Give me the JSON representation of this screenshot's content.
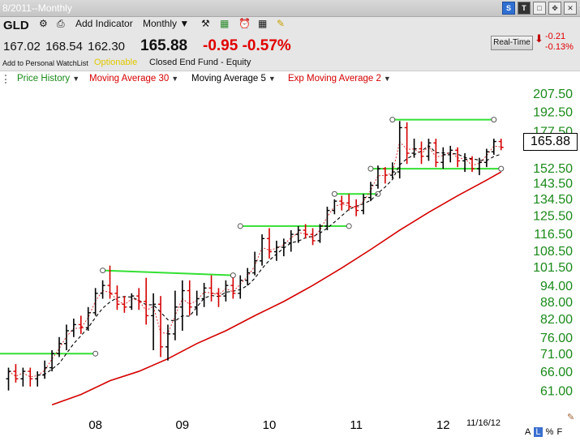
{
  "window": {
    "symbol_title": "8/2011--Monthly"
  },
  "header": {
    "ticker": "GLD",
    "add_indicator": "Add Indicator",
    "period": "Monthly",
    "open": "167.02",
    "high": "168.54",
    "low": "162.30",
    "last": "165.88",
    "change": "-0.95",
    "change_pct": "-0.57%",
    "watchlist": "Add to Personal WatchList",
    "optionable": "Optionable",
    "fund_type": "Closed End Fund - Equity",
    "realtime_label": "Real-Time",
    "rt_change": "-0.21",
    "rt_change_pct": "-0.13%"
  },
  "legend": {
    "price_history": "Price History",
    "ma30": "Moving Average 30",
    "ma5": "Moving Average 5",
    "ema2": "Exp Moving Average 2"
  },
  "footer": {
    "date": "11/16/12",
    "btn_a": "A",
    "btn_l": "L",
    "btn_pct": "%",
    "btn_f": "F"
  },
  "colors": {
    "up": "#000000",
    "down": "#d40000",
    "ma30": "#d40000",
    "ma5": "#000000",
    "ema2": "#d40000",
    "trendline": "#33e033",
    "axis_text": "#1a8a1a"
  },
  "chart_data": {
    "type": "line",
    "title": "",
    "xlabel": "",
    "ylabel": "",
    "ylim": [
      57,
      213
    ],
    "yscale": "log",
    "y_ticks": [
      "207.50",
      "192.50",
      "177.50",
      "165.88",
      "152.50",
      "143.50",
      "134.50",
      "125.50",
      "116.50",
      "108.50",
      "101.50",
      "94.00",
      "88.00",
      "82.00",
      "76.00",
      "71.00",
      "66.00",
      "61.00"
    ],
    "x_labels": [
      {
        "label": "08",
        "t": 12
      },
      {
        "label": "09",
        "t": 24
      },
      {
        "label": "10",
        "t": 36
      },
      {
        "label": "11",
        "t": 48
      },
      {
        "label": "12",
        "t": 60
      }
    ],
    "bars": [
      {
        "o": 64,
        "h": 67,
        "l": 61,
        "c": 66
      },
      {
        "o": 66,
        "h": 68,
        "l": 63,
        "c": 64
      },
      {
        "o": 64,
        "h": 67,
        "l": 62,
        "c": 66
      },
      {
        "o": 66,
        "h": 67,
        "l": 62,
        "c": 64
      },
      {
        "o": 64,
        "h": 66,
        "l": 62,
        "c": 65
      },
      {
        "o": 65,
        "h": 69,
        "l": 64,
        "c": 67
      },
      {
        "o": 67,
        "h": 72,
        "l": 66,
        "c": 71
      },
      {
        "o": 71,
        "h": 76,
        "l": 70,
        "c": 74
      },
      {
        "o": 74,
        "h": 80,
        "l": 72,
        "c": 78
      },
      {
        "o": 78,
        "h": 82,
        "l": 76,
        "c": 80
      },
      {
        "o": 80,
        "h": 83,
        "l": 77,
        "c": 79
      },
      {
        "o": 79,
        "h": 86,
        "l": 78,
        "c": 84
      },
      {
        "o": 84,
        "h": 93,
        "l": 83,
        "c": 91
      },
      {
        "o": 91,
        "h": 96,
        "l": 89,
        "c": 94
      },
      {
        "o": 94,
        "h": 102,
        "l": 89,
        "c": 91
      },
      {
        "o": 91,
        "h": 94,
        "l": 85,
        "c": 87
      },
      {
        "o": 87,
        "h": 90,
        "l": 84,
        "c": 86
      },
      {
        "o": 86,
        "h": 91,
        "l": 85,
        "c": 90
      },
      {
        "o": 90,
        "h": 93,
        "l": 85,
        "c": 88
      },
      {
        "o": 88,
        "h": 97,
        "l": 80,
        "c": 83
      },
      {
        "o": 83,
        "h": 91,
        "l": 72,
        "c": 87
      },
      {
        "o": 87,
        "h": 90,
        "l": 70,
        "c": 73
      },
      {
        "o": 73,
        "h": 80,
        "l": 69,
        "c": 77
      },
      {
        "o": 77,
        "h": 92,
        "l": 75,
        "c": 86
      },
      {
        "o": 86,
        "h": 96,
        "l": 78,
        "c": 92
      },
      {
        "o": 92,
        "h": 96,
        "l": 83,
        "c": 86
      },
      {
        "o": 86,
        "h": 92,
        "l": 83,
        "c": 89
      },
      {
        "o": 89,
        "h": 95,
        "l": 86,
        "c": 93
      },
      {
        "o": 93,
        "h": 98,
        "l": 88,
        "c": 91
      },
      {
        "o": 91,
        "h": 93,
        "l": 86,
        "c": 90
      },
      {
        "o": 90,
        "h": 96,
        "l": 88,
        "c": 94
      },
      {
        "o": 94,
        "h": 97,
        "l": 89,
        "c": 91
      },
      {
        "o": 91,
        "h": 98,
        "l": 89,
        "c": 96
      },
      {
        "o": 96,
        "h": 101,
        "l": 94,
        "c": 99
      },
      {
        "o": 99,
        "h": 108,
        "l": 98,
        "c": 104
      },
      {
        "o": 104,
        "h": 116,
        "l": 102,
        "c": 114
      },
      {
        "o": 114,
        "h": 119,
        "l": 105,
        "c": 108
      },
      {
        "o": 108,
        "h": 113,
        "l": 104,
        "c": 110
      },
      {
        "o": 110,
        "h": 114,
        "l": 106,
        "c": 112
      },
      {
        "o": 112,
        "h": 118,
        "l": 108,
        "c": 116
      },
      {
        "o": 116,
        "h": 120,
        "l": 112,
        "c": 118
      },
      {
        "o": 118,
        "h": 121,
        "l": 114,
        "c": 116
      },
      {
        "o": 116,
        "h": 119,
        "l": 111,
        "c": 113
      },
      {
        "o": 113,
        "h": 121,
        "l": 112,
        "c": 120
      },
      {
        "o": 120,
        "h": 130,
        "l": 118,
        "c": 128
      },
      {
        "o": 128,
        "h": 134,
        "l": 126,
        "c": 133
      },
      {
        "o": 133,
        "h": 136,
        "l": 128,
        "c": 132
      },
      {
        "o": 132,
        "h": 137,
        "l": 128,
        "c": 130
      },
      {
        "o": 130,
        "h": 134,
        "l": 125,
        "c": 128
      },
      {
        "o": 128,
        "h": 137,
        "l": 126,
        "c": 135
      },
      {
        "o": 135,
        "h": 144,
        "l": 133,
        "c": 142
      },
      {
        "o": 142,
        "h": 154,
        "l": 140,
        "c": 152
      },
      {
        "o": 152,
        "h": 153,
        "l": 143,
        "c": 148
      },
      {
        "o": 148,
        "h": 156,
        "l": 146,
        "c": 150
      },
      {
        "o": 150,
        "h": 185,
        "l": 146,
        "c": 180
      },
      {
        "o": 180,
        "h": 184,
        "l": 155,
        "c": 162
      },
      {
        "o": 162,
        "h": 172,
        "l": 159,
        "c": 165
      },
      {
        "o": 165,
        "h": 170,
        "l": 155,
        "c": 160
      },
      {
        "o": 160,
        "h": 172,
        "l": 157,
        "c": 169
      },
      {
        "o": 169,
        "h": 172,
        "l": 153,
        "c": 156
      },
      {
        "o": 156,
        "h": 166,
        "l": 152,
        "c": 161
      },
      {
        "o": 161,
        "h": 167,
        "l": 156,
        "c": 164
      },
      {
        "o": 164,
        "h": 166,
        "l": 153,
        "c": 157
      },
      {
        "o": 157,
        "h": 162,
        "l": 150,
        "c": 158
      },
      {
        "o": 158,
        "h": 160,
        "l": 150,
        "c": 152
      },
      {
        "o": 152,
        "h": 159,
        "l": 148,
        "c": 156
      },
      {
        "o": 156,
        "h": 165,
        "l": 153,
        "c": 163
      },
      {
        "o": 163,
        "h": 172,
        "l": 161,
        "c": 170
      },
      {
        "o": 170,
        "h": 172,
        "l": 164,
        "c": 166
      }
    ],
    "ma30": [
      {
        "t": 6,
        "v": 57.5
      },
      {
        "t": 10,
        "v": 60
      },
      {
        "t": 14,
        "v": 63.5
      },
      {
        "t": 18,
        "v": 66
      },
      {
        "t": 22,
        "v": 69.5
      },
      {
        "t": 26,
        "v": 74
      },
      {
        "t": 30,
        "v": 78
      },
      {
        "t": 34,
        "v": 83
      },
      {
        "t": 38,
        "v": 88
      },
      {
        "t": 42,
        "v": 94
      },
      {
        "t": 46,
        "v": 101
      },
      {
        "t": 50,
        "v": 109
      },
      {
        "t": 54,
        "v": 118
      },
      {
        "t": 58,
        "v": 127
      },
      {
        "t": 62,
        "v": 136
      },
      {
        "t": 66,
        "v": 145
      },
      {
        "t": 68,
        "v": 150
      }
    ],
    "trendlines": [
      {
        "t1": -2,
        "t2": 12,
        "v1": 71,
        "v2": 71
      },
      {
        "t1": 13,
        "t2": 31,
        "v1": 100,
        "v2": 98
      },
      {
        "t1": 32,
        "t2": 47,
        "v1": 120,
        "v2": 120
      },
      {
        "t1": 45,
        "t2": 51,
        "v1": 137,
        "v2": 137
      },
      {
        "t1": 50,
        "t2": 68,
        "v1": 152,
        "v2": 152
      },
      {
        "t1": 53,
        "t2": 67,
        "v1": 186,
        "v2": 186
      }
    ]
  }
}
